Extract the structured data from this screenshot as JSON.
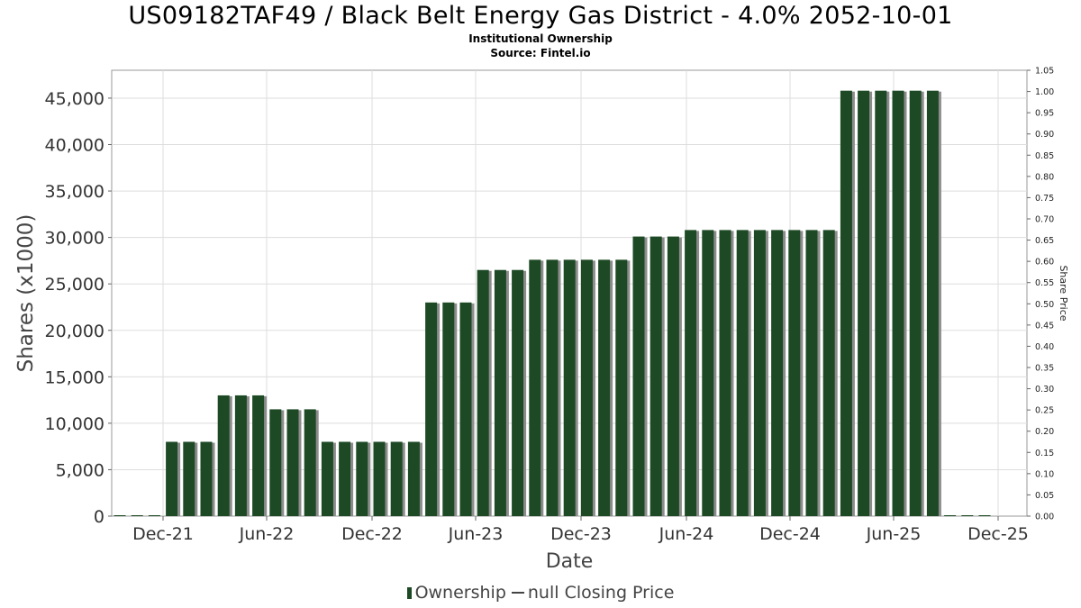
{
  "chart_data": {
    "type": "bar",
    "title": "US09182TAF49 / Black Belt Energy Gas District - 4.0% 2052-10-01",
    "subtitle": "Institutional Ownership",
    "source": "Source: Fintel.io",
    "xlabel": "Date",
    "ylabel": "Shares (x1000)",
    "y2label": "Share Price",
    "ylim": [
      0,
      48000
    ],
    "y2lim": [
      0,
      1.05
    ],
    "yticks": [
      "0",
      "5,000",
      "10,000",
      "15,000",
      "20,000",
      "25,000",
      "30,000",
      "35,000",
      "40,000",
      "45,000"
    ],
    "y2ticks": [
      "0.00",
      "0.05",
      "0.10",
      "0.15",
      "0.20",
      "0.25",
      "0.30",
      "0.35",
      "0.40",
      "0.45",
      "0.50",
      "0.55",
      "0.60",
      "0.65",
      "0.70",
      "0.75",
      "0.80",
      "0.85",
      "0.90",
      "0.95",
      "1.00",
      "1.05"
    ],
    "xticks": [
      "Dec-21",
      "Jun-22",
      "Dec-22",
      "Jun-23",
      "Dec-23",
      "Jun-24",
      "Dec-24",
      "Jun-25",
      "Dec-25"
    ],
    "colors": {
      "bar": "#1d4a25",
      "bar_shadow": "#8c8c8c",
      "grid": "#dddddd",
      "axis": "#888888"
    },
    "series": [
      {
        "name": "Ownership",
        "values": [
          0,
          0,
          0,
          8000,
          8000,
          8000,
          13000,
          13000,
          13000,
          11500,
          11500,
          11500,
          8000,
          8000,
          8000,
          8000,
          8000,
          8000,
          23000,
          23000,
          23000,
          26500,
          26500,
          26500,
          27600,
          27600,
          27600,
          27600,
          27600,
          27600,
          30100,
          30100,
          30100,
          30800,
          30800,
          30800,
          30800,
          30800,
          30800,
          30800,
          30800,
          30800,
          45800,
          45800,
          45800,
          45800,
          45800,
          45800,
          0,
          0,
          0
        ]
      }
    ],
    "legend": {
      "ownership_label": "Ownership",
      "price_label": "null Closing Price"
    }
  }
}
